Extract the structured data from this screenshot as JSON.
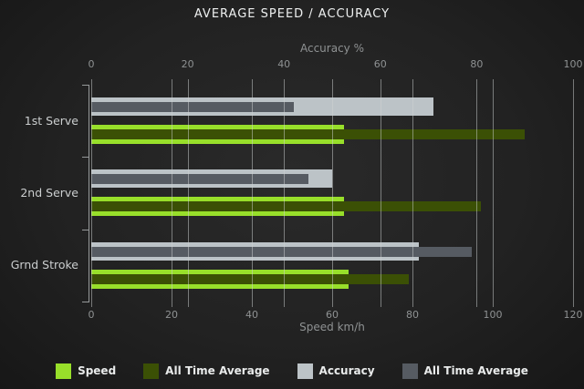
{
  "title": "AVERAGE SPEED / ACCURACY",
  "colors": {
    "background": "#222222",
    "speed_green": "#98df2a",
    "all_time_green": "#3b5005",
    "accuracy_gray": "#bcc3c7",
    "all_time_gray": "#565b62",
    "grid": "#7b7e7f",
    "axis_text": "#8f9293",
    "category_text": "#cbcecf",
    "title_text": "#eef0f0"
  },
  "chart_data": {
    "type": "bar",
    "orientation": "horizontal",
    "title": "AVERAGE SPEED / ACCURACY",
    "categories": [
      "1st Serve",
      "2nd Serve",
      "Grnd Stroke"
    ],
    "series": [
      {
        "name": "Speed",
        "axis": "bottom",
        "kind": "current",
        "color": "#98df2a",
        "values": [
          63,
          63,
          64
        ]
      },
      {
        "name": "All Time Average",
        "axis": "bottom",
        "kind": "all_time",
        "color": "#3b5005",
        "values": [
          108,
          97,
          79
        ]
      },
      {
        "name": "Accuracy",
        "axis": "top",
        "kind": "current",
        "color": "#bcc3c7",
        "values": [
          71,
          50,
          68
        ]
      },
      {
        "name": "All Time Average",
        "axis": "top",
        "kind": "all_time",
        "color": "#565b62",
        "values": [
          42,
          45,
          79
        ]
      }
    ],
    "axes": {
      "top": {
        "label": "Accuracy %",
        "min": 0,
        "max": 100,
        "ticks": [
          0,
          20,
          40,
          60,
          80,
          100
        ]
      },
      "bottom": {
        "label": "Speed km/h",
        "min": 0,
        "max": 120,
        "ticks": [
          0,
          20,
          40,
          60,
          80,
          100,
          120
        ]
      }
    },
    "grid": true,
    "legend_position": "bottom"
  }
}
